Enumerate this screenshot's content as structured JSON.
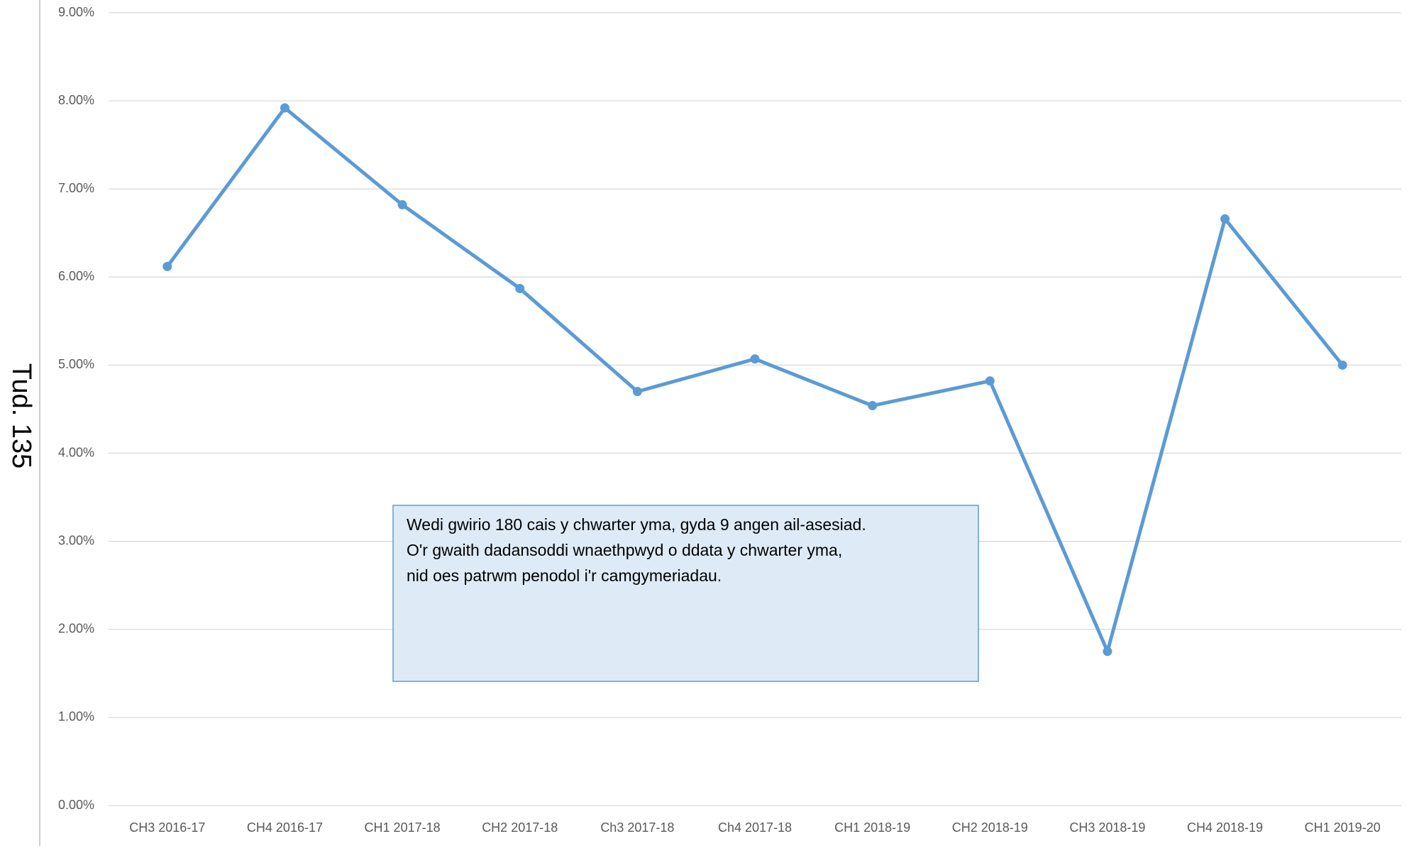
{
  "page_label": "Tud. 135",
  "chart_data": {
    "type": "line",
    "categories": [
      "CH3 2016-17",
      "CH4 2016-17",
      "CH1 2017-18",
      "CH2 2017-18",
      "Ch3 2017-18",
      "Ch4 2017-18",
      "CH1 2018-19",
      "CH2 2018-19",
      "CH3 2018-19",
      "CH4 2018-19",
      "CH1 2019-20"
    ],
    "series": [
      {
        "color": "#5b9bd5",
        "values": [
          6.12,
          7.92,
          6.82,
          5.87,
          4.7,
          5.07,
          4.54,
          4.82,
          1.75,
          6.66,
          5.0
        ]
      }
    ],
    "ylim": [
      0,
      9
    ],
    "yticks": [
      {
        "value": 0,
        "label": "0.00%"
      },
      {
        "value": 1,
        "label": "1.00%"
      },
      {
        "value": 2,
        "label": "2.00%"
      },
      {
        "value": 3,
        "label": "3.00%"
      },
      {
        "value": 4,
        "label": "4.00%"
      },
      {
        "value": 5,
        "label": "5.00%"
      },
      {
        "value": 6,
        "label": "6.00%"
      },
      {
        "value": 7,
        "label": "7.00%"
      },
      {
        "value": 8,
        "label": "8.00%"
      },
      {
        "value": 9,
        "label": "9.00%"
      }
    ],
    "grid": true,
    "annotation": [
      "Wedi gwirio 180 cais y chwarter yma, gyda 9 angen ail-asesiad.",
      "O'r gwaith dadansoddi wnaethpwyd o ddata y chwarter yma,",
      "nid oes patrwm penodol i'r camgymeriadau."
    ]
  }
}
